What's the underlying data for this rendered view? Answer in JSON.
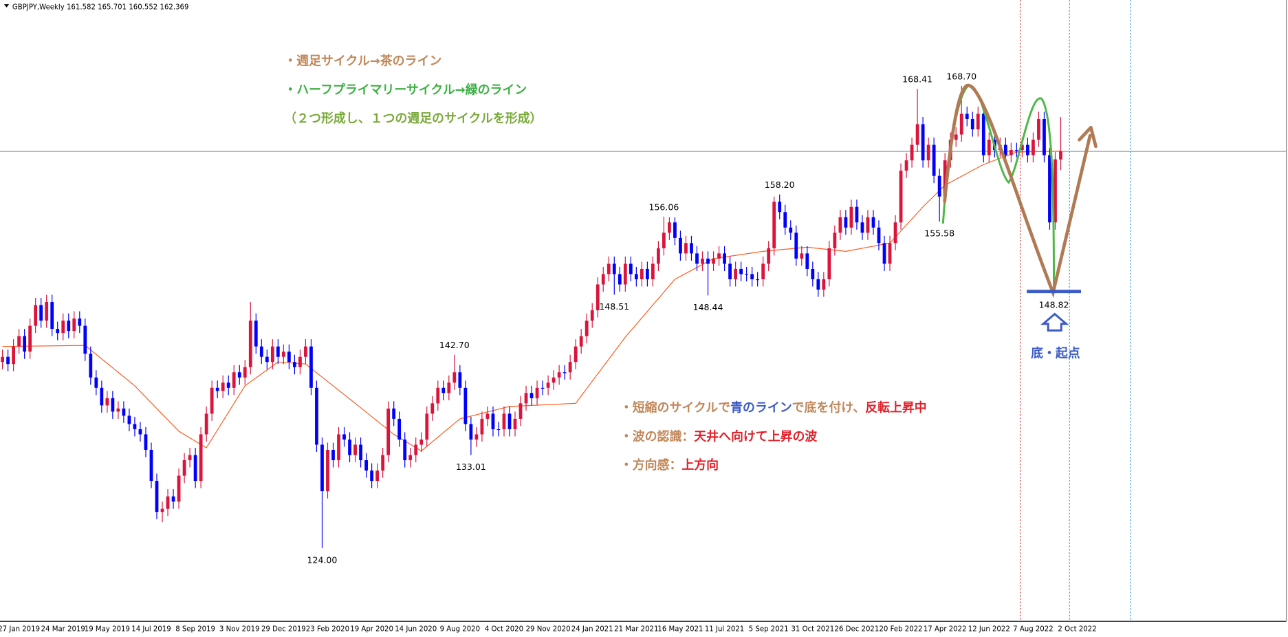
{
  "chart_data": {
    "type": "candlestick",
    "symbol": "GBPJPY,Weekly",
    "ylim": [
      117,
      177
    ],
    "up_color": "#dc143c",
    "down_color": "#0000ff",
    "categories": [
      null,
      null,
      null,
      "27 Jan 2019",
      null,
      null,
      null,
      null,
      null,
      null,
      null,
      "24 Mar 2019",
      null,
      null,
      null,
      null,
      null,
      null,
      null,
      "19 May 2019",
      null,
      null,
      null,
      null,
      null,
      null,
      null,
      "14 Jul 2019",
      null,
      null,
      null,
      null,
      null,
      null,
      null,
      "8 Sep 2019",
      null,
      null,
      null,
      null,
      null,
      null,
      null,
      "3 Nov 2019",
      null,
      null,
      null,
      null,
      null,
      null,
      null,
      "29 Dec 2019",
      null,
      null,
      null,
      null,
      null,
      null,
      null,
      "23 Feb 2020",
      null,
      null,
      null,
      null,
      null,
      null,
      null,
      "19 Apr 2020",
      null,
      null,
      null,
      null,
      null,
      null,
      null,
      "14 Jun 2020",
      null,
      null,
      null,
      null,
      null,
      null,
      null,
      "9 Aug 2020",
      null,
      null,
      null,
      null,
      null,
      null,
      null,
      "4 Oct 2020",
      null,
      null,
      null,
      null,
      null,
      null,
      null,
      "29 Nov 2020",
      null,
      null,
      null,
      null,
      null,
      null,
      null,
      "24 Jan 2021",
      null,
      null,
      null,
      null,
      null,
      null,
      null,
      "21 Mar 2021",
      null,
      null,
      null,
      null,
      null,
      null,
      null,
      "16 May 2021",
      null,
      null,
      null,
      null,
      null,
      null,
      null,
      "11 Jul 2021",
      null,
      null,
      null,
      null,
      null,
      null,
      null,
      "5 Sep 2021",
      null,
      null,
      null,
      null,
      null,
      null,
      null,
      "31 Oct 2021",
      null,
      null,
      null,
      null,
      null,
      null,
      null,
      "26 Dec 2021",
      null,
      null,
      null,
      null,
      null,
      null,
      null,
      "20 Feb 2022",
      null,
      null,
      null,
      null,
      null,
      null,
      null,
      "17 Apr 2022",
      null,
      null,
      null,
      null,
      null,
      null,
      null,
      "12 Jun 2022",
      null,
      null,
      null,
      null,
      null,
      null,
      null,
      "7 Aug 2022",
      null,
      null,
      null,
      null,
      null,
      null,
      null,
      "2 Oct 2022"
    ],
    "open": [
      142.0,
      142.5,
      141.8,
      143.5,
      144.5,
      143.0,
      145.5,
      147.5,
      146.0,
      147.8,
      145.2,
      144.8,
      146.0,
      145.0,
      146.2,
      145.5,
      142.8,
      140.5,
      139.5,
      137.8,
      138.5,
      137.2,
      137.5,
      136.8,
      136.0,
      135.5,
      135.0,
      133.5,
      130.5,
      127.5,
      127.8,
      129.0,
      128.5,
      131.0,
      132.5,
      133.0,
      130.5,
      135.0,
      137.0,
      139.5,
      139.2,
      140.0,
      139.5,
      141.0,
      140.5,
      141.5,
      146.0,
      143.5,
      142.5,
      142.0,
      143.5,
      142.5,
      143.0,
      142.0,
      141.5,
      142.5,
      143.5,
      139.5,
      134.0,
      129.5,
      133.5,
      132.5,
      135.0,
      134.5,
      133.0,
      134.0,
      132.5,
      131.5,
      130.5,
      131.5,
      133.0,
      137.5,
      136.5,
      134.5,
      132.5,
      133.0,
      134.0,
      134.5,
      137.0,
      138.0,
      139.5,
      139.0,
      140.0,
      141.0,
      139.5,
      136.0,
      134.5,
      135.0,
      136.5,
      137.0,
      135.5,
      135.5,
      137.0,
      135.5,
      136.5,
      138.0,
      139.0,
      138.5,
      139.5,
      139.5,
      140.0,
      140.5,
      141.0,
      141.0,
      142.0,
      143.5,
      144.5,
      146.0,
      147.0,
      149.5,
      150.5,
      151.5,
      150.5,
      149.5,
      151.5,
      150.5,
      150.0,
      151.0,
      150.0,
      151.5,
      153.0,
      154.5,
      155.5,
      154.0,
      152.5,
      153.5,
      152.5,
      151.5,
      152.0,
      151.5,
      152.0,
      152.5,
      151.5,
      150.0,
      151.0,
      150.5,
      150.5,
      150.0,
      150.0,
      151.5,
      153.0,
      157.5,
      156.5,
      155.0,
      154.5,
      152.0,
      152.5,
      151.0,
      150.0,
      149.0,
      150.0,
      153.0,
      154.5,
      156.0,
      155.0,
      157.0,
      155.5,
      154.5,
      156.0,
      155.0,
      153.5,
      151.5,
      153.5,
      155.5,
      160.5,
      161.5,
      163.0,
      165.0,
      161.5,
      163.0,
      160.0,
      158.0,
      161.5,
      163.5,
      164.0,
      166.0,
      165.5,
      164.5,
      166.0,
      162.0,
      163.5,
      162.5,
      163.0,
      162.0,
      162.5,
      162.5,
      163.0,
      162.0,
      163.5,
      165.5,
      162.0,
      155.5,
      161.582,
      null,
      null,
      null
    ],
    "high": [
      143.2,
      143.2,
      144.2,
      145.2,
      145.2,
      146.2,
      148.2,
      148.2,
      148.5,
      148.5,
      145.9,
      146.7,
      146.7,
      146.9,
      146.9,
      146.2,
      143.5,
      141.2,
      140.2,
      139.2,
      139.2,
      138.2,
      138.2,
      137.5,
      136.7,
      136.2,
      135.7,
      134.2,
      131.2,
      128.5,
      129.7,
      129.7,
      131.7,
      133.2,
      133.7,
      133.7,
      135.7,
      137.7,
      140.2,
      140.2,
      140.7,
      140.7,
      141.7,
      141.7,
      142.2,
      147.8,
      146.7,
      144.2,
      143.2,
      144.2,
      144.2,
      143.7,
      143.7,
      142.7,
      143.2,
      144.2,
      144.2,
      140.2,
      134.7,
      134.2,
      134.2,
      135.7,
      135.7,
      135.2,
      134.7,
      134.7,
      133.2,
      132.2,
      132.2,
      133.7,
      138.2,
      138.2,
      137.2,
      135.2,
      133.7,
      134.7,
      135.2,
      137.7,
      138.7,
      140.2,
      140.2,
      140.7,
      142.7,
      141.7,
      140.2,
      136.7,
      135.7,
      137.2,
      137.7,
      137.7,
      136.2,
      137.7,
      137.7,
      137.2,
      138.7,
      139.7,
      139.7,
      140.2,
      140.2,
      140.7,
      141.2,
      141.7,
      141.7,
      142.7,
      144.2,
      145.2,
      146.7,
      147.7,
      150.2,
      151.2,
      152.2,
      152.2,
      151.2,
      152.2,
      152.2,
      151.2,
      151.7,
      151.7,
      152.2,
      153.7,
      156.06,
      156.0,
      156.0,
      154.7,
      154.2,
      154.2,
      153.2,
      152.7,
      152.7,
      152.7,
      153.2,
      153.2,
      152.2,
      151.7,
      151.7,
      151.2,
      151.2,
      150.7,
      152.2,
      153.7,
      158.0,
      158.2,
      157.2,
      155.7,
      155.2,
      153.2,
      153.2,
      151.7,
      150.7,
      150.7,
      153.7,
      155.2,
      156.7,
      156.7,
      157.7,
      157.7,
      156.2,
      156.7,
      156.7,
      155.7,
      154.2,
      154.2,
      156.2,
      161.2,
      162.2,
      163.7,
      168.41,
      165.7,
      163.7,
      163.7,
      160.7,
      162.2,
      164.2,
      164.7,
      168.7,
      166.7,
      166.2,
      166.7,
      166.7,
      164.2,
      164.2,
      163.7,
      163.7,
      163.2,
      163.2,
      163.7,
      163.7,
      164.2,
      166.2,
      166.2,
      162.7,
      162.3,
      165.701,
      null,
      null,
      null
    ],
    "low": [
      141.3,
      141.1,
      141.1,
      142.8,
      142.3,
      142.3,
      144.8,
      145.3,
      145.3,
      144.5,
      144.1,
      144.1,
      144.3,
      144.3,
      144.8,
      142.1,
      139.8,
      138.8,
      137.1,
      137.1,
      136.5,
      136.5,
      136.1,
      135.3,
      134.8,
      134.3,
      132.8,
      129.8,
      126.8,
      126.5,
      127.1,
      127.8,
      127.8,
      130.3,
      131.8,
      129.8,
      129.8,
      134.3,
      136.3,
      138.5,
      138.5,
      138.8,
      138.8,
      139.8,
      139.8,
      140.8,
      142.8,
      141.8,
      141.3,
      141.3,
      141.8,
      141.8,
      141.3,
      140.8,
      140.8,
      141.8,
      138.8,
      133.3,
      124.0,
      128.8,
      131.8,
      131.8,
      133.8,
      132.3,
      132.3,
      131.8,
      130.8,
      129.8,
      129.8,
      130.8,
      132.3,
      135.8,
      133.8,
      131.8,
      131.8,
      132.3,
      133.3,
      133.8,
      136.3,
      137.3,
      138.3,
      138.3,
      139.3,
      138.8,
      135.3,
      133.01,
      133.8,
      134.3,
      135.8,
      134.8,
      134.8,
      134.8,
      134.8,
      134.8,
      135.8,
      137.3,
      137.8,
      137.8,
      138.8,
      138.8,
      139.3,
      139.8,
      140.3,
      140.3,
      141.3,
      142.8,
      143.8,
      145.3,
      146.3,
      148.8,
      149.8,
      148.51,
      148.8,
      148.8,
      149.8,
      149.3,
      149.3,
      149.3,
      149.3,
      150.8,
      152.3,
      153.8,
      153.3,
      151.8,
      151.8,
      151.8,
      150.8,
      150.8,
      148.44,
      150.8,
      151.3,
      150.8,
      149.3,
      149.3,
      149.8,
      149.8,
      149.3,
      149.3,
      149.3,
      150.8,
      152.3,
      155.8,
      154.3,
      153.8,
      151.3,
      151.3,
      150.3,
      149.3,
      148.3,
      148.3,
      149.3,
      152.3,
      153.8,
      154.3,
      154.3,
      154.8,
      153.8,
      153.8,
      154.3,
      152.8,
      150.8,
      150.8,
      152.8,
      154.8,
      159.8,
      160.8,
      162.3,
      160.8,
      160.8,
      159.3,
      155.58,
      157.3,
      160.8,
      162.8,
      163.3,
      164.8,
      163.8,
      163.8,
      161.3,
      161.3,
      161.8,
      161.8,
      161.3,
      161.3,
      161.8,
      161.8,
      161.3,
      161.3,
      162.8,
      161.3,
      154.8,
      154.8,
      160.552,
      null,
      null,
      null
    ],
    "close": [
      142.5,
      141.8,
      143.5,
      144.5,
      143.0,
      145.5,
      147.5,
      146.0,
      147.8,
      145.2,
      144.8,
      146.0,
      145.0,
      146.2,
      145.5,
      142.8,
      140.5,
      139.5,
      137.8,
      138.5,
      137.2,
      137.5,
      136.8,
      136.0,
      135.5,
      135.0,
      133.5,
      130.5,
      127.5,
      127.8,
      129.0,
      128.5,
      131.0,
      132.5,
      133.0,
      130.5,
      135.0,
      137.0,
      139.5,
      139.2,
      140.0,
      139.5,
      141.0,
      140.5,
      141.5,
      146.0,
      143.5,
      142.5,
      142.0,
      143.5,
      142.5,
      143.0,
      142.0,
      141.5,
      142.5,
      143.5,
      139.5,
      134.0,
      129.5,
      133.5,
      132.5,
      135.0,
      134.5,
      133.0,
      134.0,
      132.5,
      131.5,
      130.5,
      131.5,
      133.0,
      137.5,
      136.5,
      134.5,
      132.5,
      133.0,
      134.0,
      134.5,
      137.0,
      138.0,
      139.5,
      139.0,
      140.0,
      141.0,
      139.5,
      136.0,
      134.5,
      135.0,
      136.5,
      137.0,
      135.5,
      135.5,
      137.0,
      135.5,
      136.5,
      138.0,
      139.0,
      138.5,
      139.5,
      139.5,
      140.0,
      140.5,
      141.0,
      141.0,
      142.0,
      143.5,
      144.5,
      146.0,
      147.0,
      149.5,
      150.5,
      151.5,
      150.5,
      149.5,
      151.5,
      150.5,
      150.0,
      151.0,
      150.0,
      151.5,
      153.0,
      154.5,
      155.5,
      154.0,
      152.5,
      153.5,
      152.5,
      151.5,
      152.0,
      151.5,
      152.0,
      152.5,
      151.5,
      150.0,
      151.0,
      150.5,
      150.5,
      150.0,
      150.0,
      151.5,
      153.0,
      157.5,
      156.5,
      155.0,
      154.5,
      152.0,
      152.5,
      151.0,
      150.0,
      149.0,
      150.0,
      153.0,
      154.5,
      156.0,
      155.0,
      157.0,
      155.5,
      154.5,
      156.0,
      155.0,
      153.5,
      151.5,
      153.5,
      155.5,
      160.5,
      161.5,
      163.0,
      165.0,
      161.5,
      163.0,
      160.0,
      158.0,
      161.5,
      163.5,
      164.0,
      166.0,
      165.5,
      164.5,
      166.0,
      162.0,
      163.5,
      162.5,
      163.0,
      162.0,
      162.5,
      162.5,
      163.0,
      162.0,
      163.5,
      165.5,
      162.0,
      155.5,
      161.6,
      162.369,
      null,
      null,
      null
    ],
    "ma": {
      "color": "#ff5a1f",
      "x": [
        0,
        15,
        24,
        32,
        37,
        44,
        50,
        55,
        64,
        71,
        76,
        83,
        92,
        104,
        113,
        122,
        129,
        138,
        146,
        153,
        161,
        167,
        171,
        178,
        184,
        192
      ],
      "values": [
        143.5,
        143.6,
        139.7,
        135.3,
        133.7,
        139.7,
        142.0,
        141.8,
        138.0,
        135.0,
        133.4,
        136.5,
        137.7,
        138.0,
        144.4,
        150.0,
        152.0,
        152.7,
        153.1,
        152.7,
        153.5,
        157.0,
        159.1,
        161.1,
        162.3,
        162.4
      ]
    },
    "high_labels": [
      {
        "candle": 166,
        "value": 168.41,
        "label": "168.41"
      },
      {
        "candle": 174,
        "value": 168.7,
        "label": "168.70"
      },
      {
        "candle": 141,
        "value": 158.2,
        "label": "158.20"
      },
      {
        "candle": 120,
        "value": 156.06,
        "label": "156.06"
      },
      {
        "candle": 82,
        "value": 142.7,
        "label": "142.70"
      }
    ],
    "low_labels": [
      {
        "candle": 170,
        "value": 155.58,
        "label": "155.58"
      },
      {
        "candle": 111,
        "value": 148.51,
        "label": "148.51"
      },
      {
        "candle": 128,
        "value": 148.44,
        "label": "148.44"
      },
      {
        "candle": 85,
        "value": 133.01,
        "label": "133.01"
      },
      {
        "candle": 58,
        "value": 124.0,
        "label": "124.00"
      }
    ],
    "target_level": {
      "value": 148.82,
      "label": "148.82",
      "color": "#3b5bc6"
    },
    "target_note": "底・起点",
    "notes_top": [
      {
        "segments": [
          {
            "text": "・週足サイクル→茶のライン",
            "color": "#c0875a"
          }
        ]
      },
      {
        "segments": [
          {
            "text": "・ハーフプライマリーサイクル→緑のライン",
            "color": "#3cb043"
          }
        ]
      },
      {
        "segments": [
          {
            "text": "（２つ形成し、１つの週足のサイクルを形成）",
            "color": "#7aaa3a"
          }
        ]
      }
    ],
    "notes_bottom": [
      {
        "segments": [
          {
            "text": "・短縮のサイクルで",
            "color": "#c0875a"
          },
          {
            "text": "青のライン",
            "color": "#3b5bc6"
          },
          {
            "text": "で底を付け、",
            "color": "#c0875a"
          },
          {
            "text": "反転上昇中",
            "color": "#e0202a"
          }
        ]
      },
      {
        "segments": [
          {
            "text": "・波の認識：",
            "color": "#c0875a"
          },
          {
            "text": "天井へ向けて上昇の波",
            "color": "#e0202a"
          }
        ]
      },
      {
        "segments": [
          {
            "text": "・方向感：",
            "color": "#c0875a"
          },
          {
            "text": "上方向",
            "color": "#e0202a"
          }
        ]
      }
    ]
  }
}
